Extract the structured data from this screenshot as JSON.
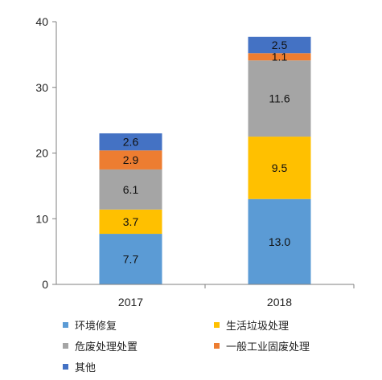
{
  "chart_data": {
    "type": "bar",
    "stacked": true,
    "title": "",
    "xlabel": "",
    "ylabel": "",
    "ylim": [
      0,
      40
    ],
    "yticks": [
      0,
      10,
      20,
      30,
      40
    ],
    "grid": false,
    "legend_position": "bottom",
    "categories": [
      "2017",
      "2018"
    ],
    "series": [
      {
        "name": "环境修复",
        "color": "#5b9bd5",
        "values": [
          7.7,
          13.0
        ],
        "labels": [
          "7.7",
          "13.0"
        ]
      },
      {
        "name": "生活垃圾处理",
        "color": "#ffc000",
        "values": [
          3.7,
          9.5
        ],
        "labels": [
          "3.7",
          "9.5"
        ]
      },
      {
        "name": "危废处理处置",
        "color": "#a5a5a5",
        "values": [
          6.1,
          11.6
        ],
        "labels": [
          "6.1",
          "11.6"
        ]
      },
      {
        "name": "一般工业固废处理",
        "color": "#ed7d31",
        "values": [
          2.9,
          1.1
        ],
        "labels": [
          "2.9",
          "1.1"
        ]
      },
      {
        "name": "其他",
        "color": "#4472c4",
        "values": [
          2.6,
          2.5
        ],
        "labels": [
          "2.6",
          "2.5"
        ]
      }
    ]
  }
}
